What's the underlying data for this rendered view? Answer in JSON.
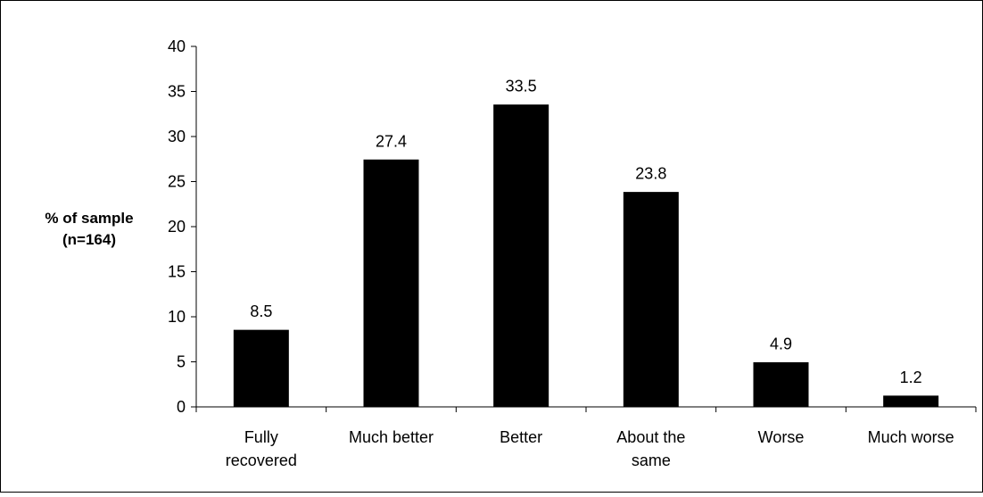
{
  "chart_data": {
    "type": "bar",
    "title": "",
    "xlabel": "",
    "ylabel": "% of sample (n=164)",
    "ylabel_lines": [
      "% of sample",
      "(n=164)"
    ],
    "ylim": [
      0,
      40
    ],
    "yticks": [
      0,
      5,
      10,
      15,
      20,
      25,
      30,
      35,
      40
    ],
    "grid": false,
    "legend": "none",
    "bar_color": "#000000",
    "categories": [
      "Fully recovered",
      "Much better",
      "Better",
      "About the same",
      "Worse",
      "Much worse"
    ],
    "category_lines": [
      [
        "Fully",
        "recovered"
      ],
      [
        "Much better"
      ],
      [
        "Better"
      ],
      [
        "About the",
        "same"
      ],
      [
        "Worse"
      ],
      [
        "Much worse"
      ]
    ],
    "values": [
      8.5,
      27.4,
      33.5,
      23.8,
      4.9,
      1.2
    ],
    "data_labels": [
      "8.5",
      "27.4",
      "33.5",
      "23.8",
      "4.9",
      "1.2"
    ]
  }
}
